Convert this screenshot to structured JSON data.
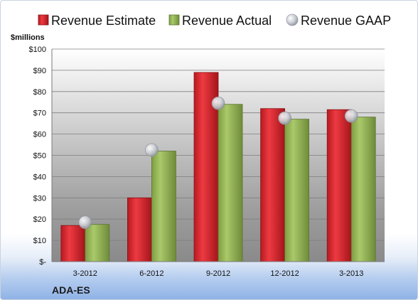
{
  "chart_data": {
    "type": "bar",
    "title": "",
    "ylabel": "$millions",
    "xlabel": "",
    "ticker": "ADA-ES",
    "categories": [
      "3-2012",
      "6-2012",
      "9-2012",
      "12-2012",
      "3-2013"
    ],
    "ylim": [
      0,
      100
    ],
    "yticks": [
      0,
      10,
      20,
      30,
      40,
      50,
      60,
      70,
      80,
      90,
      100
    ],
    "ytick_labels": [
      "$-",
      "$10",
      "$20",
      "$30",
      "$40",
      "$50",
      "$60",
      "$70",
      "$80",
      "$90",
      "$100"
    ],
    "legend_position": "top",
    "grid": true,
    "series": [
      {
        "name": "Revenue Estimate",
        "kind": "bar",
        "color": "#cc1f26",
        "values": [
          17,
          30,
          89,
          72,
          71.5
        ]
      },
      {
        "name": "Revenue Actual",
        "kind": "bar",
        "color": "#8fb04f",
        "values": [
          17.5,
          52,
          74,
          67,
          68
        ]
      },
      {
        "name": "Revenue GAAP",
        "kind": "marker",
        "color": "#c0c4cc",
        "values": [
          18.5,
          52.5,
          74.5,
          67.5,
          68.5
        ]
      }
    ]
  }
}
